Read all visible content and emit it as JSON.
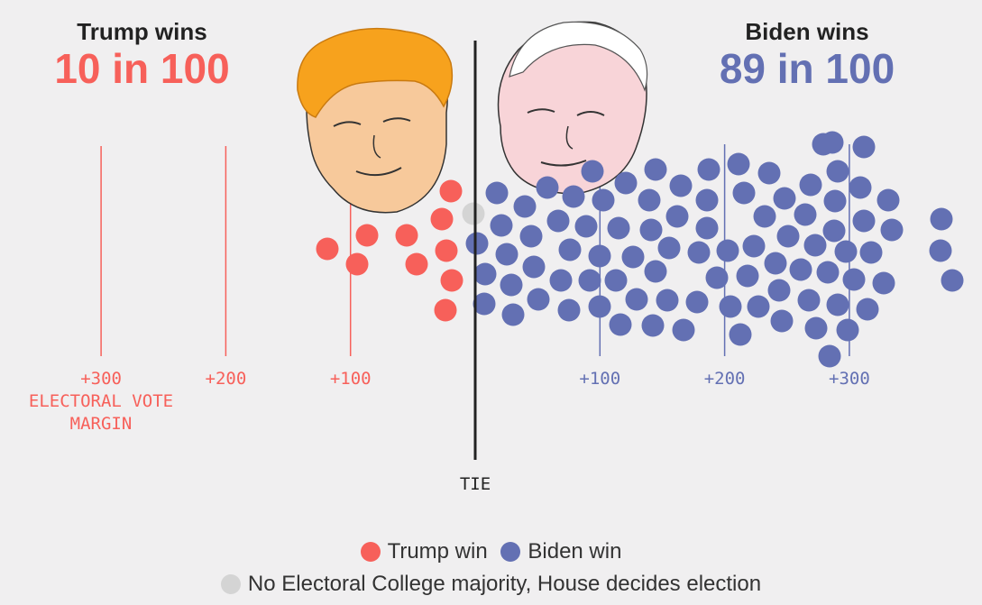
{
  "colors": {
    "trump": "#f7605a",
    "biden": "#6370b3",
    "tie": "#d4d4d4",
    "axis": "#222222",
    "bg": "#f0eff0"
  },
  "headlines": {
    "trump": {
      "label": "Trump wins",
      "odds": "10 in 100"
    },
    "biden": {
      "label": "Biden wins",
      "odds": "89 in 100"
    }
  },
  "chart_data": {
    "type": "scatter",
    "title": "",
    "xlabel": "ELECTORAL VOTE MARGIN",
    "ylabel": "",
    "center_label": "TIE",
    "left_ticks": [
      {
        "value": 300,
        "label": "+300"
      },
      {
        "value": 200,
        "label": "+200"
      },
      {
        "value": 100,
        "label": "+100"
      }
    ],
    "right_ticks": [
      {
        "value": 100,
        "label": "+100"
      },
      {
        "value": 200,
        "label": "+200"
      },
      {
        "value": 300,
        "label": "+300"
      }
    ],
    "xlim": [
      -300,
      300
    ],
    "series": [
      {
        "name": "Trump win",
        "count": 10
      },
      {
        "name": "Biden win",
        "count": 89
      },
      {
        "name": "No Electoral College majority, House decides election",
        "count": 1
      }
    ]
  },
  "legend": {
    "trump": "Trump win",
    "biden": "Biden win",
    "tie": "No Electoral College majority, House decides election"
  },
  "images": {
    "trump_face": "trump-caricature",
    "biden_face": "biden-caricature"
  }
}
